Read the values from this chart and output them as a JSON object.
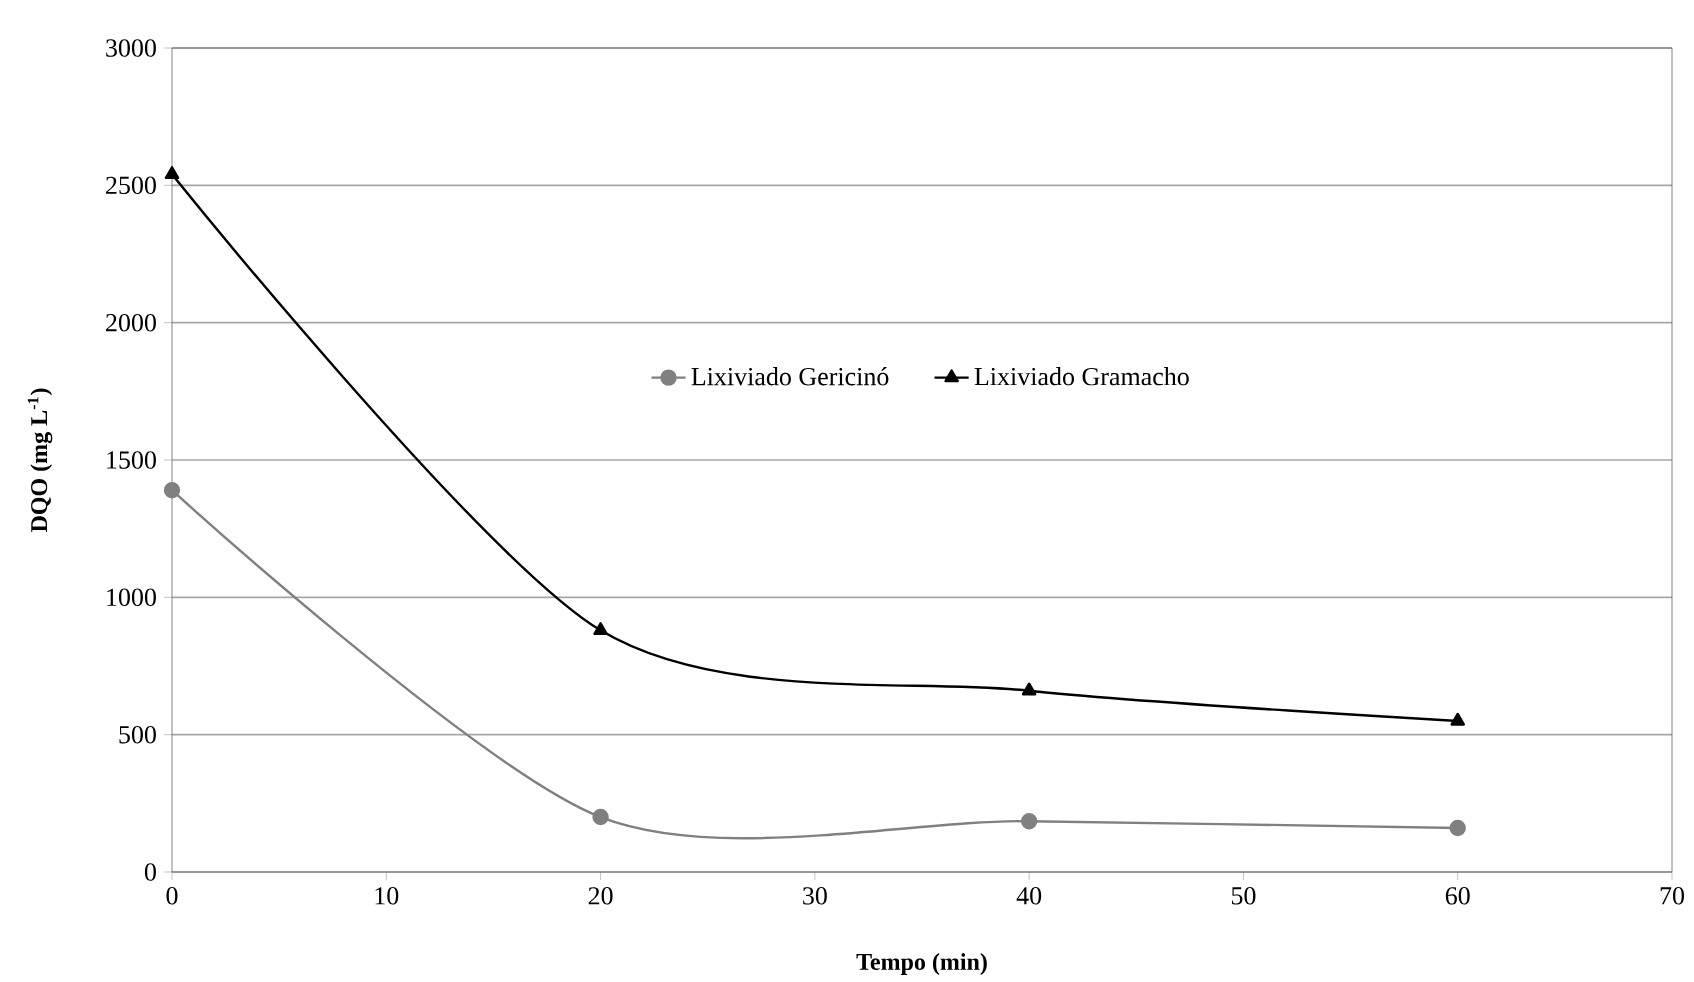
{
  "chart_data": {
    "type": "line",
    "xlabel": "Tempo (min)",
    "ylabel": "DQO (mg L$^{-1}$)",
    "xlim": [
      0,
      70
    ],
    "xticks": [
      0,
      10,
      20,
      30,
      40,
      50,
      60,
      70
    ],
    "ylim": [
      0,
      3000
    ],
    "yticks": [
      0,
      500,
      1000,
      1500,
      2000,
      2500,
      3000
    ],
    "x": [
      0,
      20,
      40,
      60
    ],
    "grid": "y",
    "legend": "center",
    "series": [
      {
        "name": "Lixiviado Gericinó",
        "color": "#808080",
        "marker": "circle",
        "values": [
          1390,
          200,
          185,
          160
        ]
      },
      {
        "name": "Lixiviado Gramacho",
        "color": "#000000",
        "marker": "triangle",
        "values": [
          2540,
          880,
          660,
          550
        ]
      }
    ]
  }
}
